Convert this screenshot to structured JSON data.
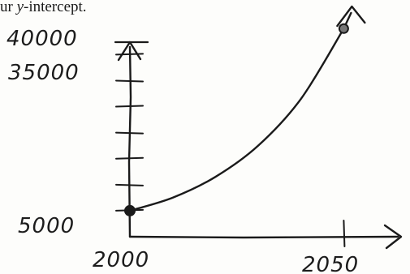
{
  "caption": {
    "prefix": "ur ",
    "italic_var": "y",
    "suffix": "-intercept."
  },
  "chart_data": {
    "type": "line",
    "title": "",
    "xlabel": "",
    "ylabel": "",
    "x_tick_labels": [
      "2000",
      "2050"
    ],
    "y_tick_labels": [
      "5000",
      "35000",
      "40000"
    ],
    "xlim": [
      2000,
      2056
    ],
    "ylim": [
      0,
      43000
    ],
    "y_tick_marks": [
      5000,
      10000,
      15000,
      20000,
      25000,
      30000,
      35000,
      40000
    ],
    "x_tick_marks": [
      2050
    ],
    "grid": false,
    "series": [
      {
        "points": [
          {
            "x": 2000,
            "y": 5000
          },
          {
            "x": 2010,
            "y": 7500
          },
          {
            "x": 2020,
            "y": 11500
          },
          {
            "x": 2030,
            "y": 17500
          },
          {
            "x": 2040,
            "y": 26500
          },
          {
            "x": 2050,
            "y": 40000
          }
        ]
      }
    ],
    "highlighted_points": [
      {
        "x": 2000,
        "y": 5000,
        "style": "filled"
      },
      {
        "x": 2050,
        "y": 40000,
        "style": "open"
      }
    ],
    "stroke_color": "#1a1a1a"
  }
}
